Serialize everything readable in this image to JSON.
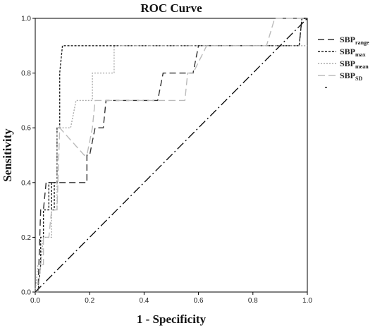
{
  "chart_data": {
    "type": "line",
    "title": "ROC Curve",
    "xlabel": "1 - Specificity",
    "ylabel": "Sensitivity",
    "xlim": [
      0.0,
      1.0
    ],
    "ylim": [
      0.0,
      1.0
    ],
    "xticks": [
      "0.0",
      "0.2",
      "0.4",
      "0.6",
      "0.8",
      "1.0"
    ],
    "yticks": [
      "0.0",
      "0.2",
      "0.4",
      "0.6",
      "0.8",
      "1.0"
    ],
    "grid": false,
    "legend_position": "right",
    "series": [
      {
        "name": "SBPrange",
        "name_main": "SBP",
        "name_sub": "range",
        "color": "#333333",
        "dash": "9,5",
        "x": [
          0.0,
          0.01,
          0.02,
          0.03,
          0.04,
          0.05,
          0.06,
          0.07,
          0.07,
          0.16,
          0.19,
          0.19,
          0.2,
          0.22,
          0.25,
          0.26,
          0.27,
          0.45,
          0.47,
          0.48,
          0.55,
          0.56,
          0.58,
          0.6,
          0.62,
          0.96,
          0.97,
          0.98,
          1.0
        ],
        "y": [
          0.0,
          0.0,
          0.3,
          0.3,
          0.4,
          0.4,
          0.4,
          0.4,
          0.4,
          0.4,
          0.4,
          0.5,
          0.5,
          0.6,
          0.6,
          0.7,
          0.7,
          0.7,
          0.8,
          0.8,
          0.8,
          0.8,
          0.8,
          0.9,
          0.9,
          0.9,
          0.9,
          1.0,
          1.0
        ]
      },
      {
        "name": "SBPmax",
        "name_main": "SBP",
        "name_sub": "max",
        "color": "#222222",
        "dash": "3,2",
        "x": [
          0.0,
          0.01,
          0.02,
          0.02,
          0.03,
          0.03,
          0.05,
          0.05,
          0.06,
          0.06,
          0.07,
          0.07,
          0.08,
          0.08,
          0.09,
          0.09,
          0.1,
          0.11,
          0.97,
          0.98,
          1.0
        ],
        "y": [
          0.0,
          0.0,
          0.1,
          0.2,
          0.2,
          0.3,
          0.3,
          0.4,
          0.4,
          0.3,
          0.3,
          0.4,
          0.4,
          0.6,
          0.6,
          0.8,
          0.9,
          0.9,
          0.9,
          1.0,
          1.0
        ]
      },
      {
        "name": "SBPmean",
        "name_main": "SBP",
        "name_sub": "mean",
        "color": "#aaaaaa",
        "dash": "2,2",
        "x": [
          0.0,
          0.01,
          0.02,
          0.03,
          0.03,
          0.06,
          0.06,
          0.08,
          0.08,
          0.1,
          0.13,
          0.15,
          0.21,
          0.21,
          0.24,
          0.29,
          0.29,
          0.3,
          0.31,
          1.0
        ],
        "y": [
          0.0,
          0.1,
          0.1,
          0.2,
          0.2,
          0.2,
          0.3,
          0.3,
          0.6,
          0.6,
          0.6,
          0.7,
          0.7,
          0.8,
          0.8,
          0.8,
          0.9,
          0.9,
          0.9,
          0.9
        ]
      },
      {
        "name": "SBPSD",
        "name_main": "SBP",
        "name_sub": "SD",
        "color": "#bbbbbb",
        "dash": "10,5",
        "x": [
          0.0,
          0.01,
          0.02,
          0.03,
          0.03,
          0.04,
          0.05,
          0.06,
          0.06,
          0.08,
          0.09,
          0.18,
          0.18,
          0.19,
          0.21,
          0.22,
          0.28,
          0.33,
          0.33,
          0.35,
          0.55,
          0.56,
          0.57,
          0.58,
          0.63,
          0.65,
          0.85,
          0.88,
          1.0
        ],
        "y": [
          0.0,
          0.0,
          0.1,
          0.1,
          0.2,
          0.2,
          0.2,
          0.3,
          0.3,
          0.3,
          0.6,
          0.5,
          0.5,
          0.5,
          0.6,
          0.7,
          0.7,
          0.7,
          0.7,
          0.7,
          0.7,
          0.8,
          0.8,
          0.8,
          0.9,
          0.9,
          0.9,
          1.0,
          1.0
        ]
      },
      {
        "name": "",
        "color": "#111111",
        "dash": "12,4,2,4",
        "x": [
          0.0,
          1.0
        ],
        "y": [
          0.0,
          1.0
        ]
      }
    ]
  }
}
